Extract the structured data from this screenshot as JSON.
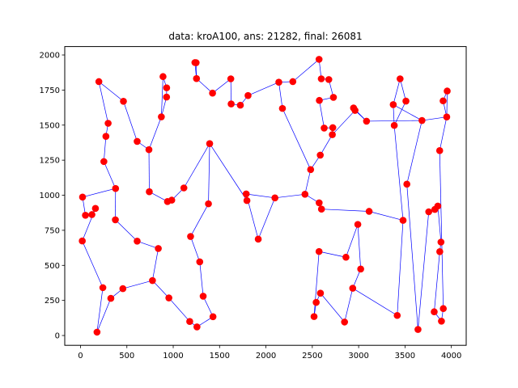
{
  "chart_data": {
    "type": "scatter",
    "title": "data: kroA100, ans: 21282, final: 26081",
    "xlabel": "",
    "ylabel": "",
    "xlim": [
      -170,
      4160
    ],
    "ylim": [
      -70,
      2060
    ],
    "xticks": [
      0,
      500,
      1000,
      1500,
      2000,
      2500,
      3000,
      3500,
      4000
    ],
    "yticks": [
      0,
      250,
      500,
      750,
      1000,
      1250,
      1500,
      1750,
      2000
    ],
    "grid": false,
    "marker_color": "#ff0000",
    "line_color": "#0000ff",
    "points": [
      [
        1380,
        939
      ],
      [
        2848,
        96
      ],
      [
        3510,
        1671
      ],
      [
        457,
        334
      ],
      [
        3888,
        666
      ],
      [
        984,
        965
      ],
      [
        2721,
        1482
      ],
      [
        1286,
        525
      ],
      [
        2716,
        1432
      ],
      [
        738,
        1325
      ],
      [
        1251,
        1832
      ],
      [
        2728,
        1698
      ],
      [
        3815,
        169
      ],
      [
        3683,
        1533
      ],
      [
        1247,
        1945
      ],
      [
        123,
        862
      ],
      [
        1234,
        1946
      ],
      [
        252,
        1240
      ],
      [
        611,
        673
      ],
      [
        2576,
        1676
      ],
      [
        928,
        1700
      ],
      [
        53,
        857
      ],
      [
        1807,
        1711
      ],
      [
        274,
        1420
      ],
      [
        2574,
        946
      ],
      [
        178,
        24
      ],
      [
        2678,
        1825
      ],
      [
        1795,
        962
      ],
      [
        3384,
        1498
      ],
      [
        3520,
        1079
      ],
      [
        1256,
        61
      ],
      [
        1424,
        1728
      ],
      [
        3913,
        192
      ],
      [
        3085,
        1528
      ],
      [
        2573,
        1969
      ],
      [
        463,
        1670
      ],
      [
        3875,
        598
      ],
      [
        298,
        1513
      ],
      [
        3479,
        821
      ],
      [
        2542,
        236
      ],
      [
        3955,
        1743
      ],
      [
        1323,
        280
      ],
      [
        3447,
        1830
      ],
      [
        2936,
        337
      ],
      [
        1621,
        1830
      ],
      [
        3373,
        1646
      ],
      [
        1393,
        1368
      ],
      [
        3874,
        1318
      ],
      [
        938,
        955
      ],
      [
        3022,
        474
      ],
      [
        2482,
        1183
      ],
      [
        3854,
        923
      ],
      [
        376,
        825
      ],
      [
        2519,
        135
      ],
      [
        2945,
        1622
      ],
      [
        953,
        268
      ],
      [
        2628,
        1479
      ],
      [
        2097,
        981
      ],
      [
        890,
        1846
      ],
      [
        2139,
        1806
      ],
      [
        2421,
        1007
      ],
      [
        2290,
        1810
      ],
      [
        1115,
        1052
      ],
      [
        2588,
        302
      ],
      [
        327,
        265
      ],
      [
        241,
        341
      ],
      [
        1917,
        687
      ],
      [
        2991,
        792
      ],
      [
        2573,
        599
      ],
      [
        19,
        674
      ],
      [
        3911,
        1673
      ],
      [
        872,
        1559
      ],
      [
        2863,
        558
      ],
      [
        929,
        1766
      ],
      [
        839,
        620
      ],
      [
        3893,
        102
      ],
      [
        2178,
        1619
      ],
      [
        3822,
        899
      ],
      [
        378,
        1048
      ],
      [
        1178,
        100
      ],
      [
        2599,
        901
      ],
      [
        3416,
        143
      ],
      [
        2961,
        1605
      ],
      [
        611,
        1384
      ],
      [
        3113,
        885
      ],
      [
        2597,
        1830
      ],
      [
        2586,
        1286
      ],
      [
        161,
        906
      ],
      [
        1429,
        134
      ],
      [
        742,
        1025
      ],
      [
        1625,
        1651
      ],
      [
        1187,
        706
      ],
      [
        1787,
        1009
      ],
      [
        22,
        987
      ],
      [
        3640,
        43
      ],
      [
        3756,
        882
      ],
      [
        776,
        392
      ],
      [
        1724,
        1642
      ],
      [
        198,
        1810
      ],
      [
        3950,
        1558
      ]
    ],
    "tour_order": [
      98,
      35,
      83,
      9,
      89,
      48,
      5,
      62,
      46,
      0,
      91,
      7,
      41,
      88,
      30,
      79,
      55,
      96,
      74,
      18,
      52,
      78,
      17,
      23,
      37,
      98
    ],
    "tour_extra_edges": [
      [
        98,
        35
      ],
      [
        35,
        83
      ],
      [
        83,
        9
      ],
      [
        9,
        89
      ],
      [
        89,
        48
      ],
      [
        48,
        5
      ],
      [
        5,
        62
      ],
      [
        62,
        46
      ],
      [
        46,
        0
      ],
      [
        0,
        91
      ],
      [
        91,
        7
      ],
      [
        7,
        41
      ],
      [
        41,
        88
      ],
      [
        88,
        30
      ],
      [
        30,
        79
      ],
      [
        79,
        55
      ],
      [
        55,
        96
      ],
      [
        96,
        74
      ],
      [
        74,
        18
      ],
      [
        18,
        52
      ],
      [
        52,
        78
      ],
      [
        78,
        93
      ],
      [
        93,
        21
      ],
      [
        21,
        15
      ],
      [
        15,
        87
      ],
      [
        87,
        69
      ],
      [
        69,
        65
      ],
      [
        65,
        25
      ],
      [
        25,
        64
      ],
      [
        64,
        3
      ],
      [
        3,
        96
      ],
      [
        37,
        23
      ],
      [
        23,
        17
      ],
      [
        17,
        78
      ],
      [
        98,
        37
      ],
      [
        71,
        20
      ],
      [
        20,
        73
      ],
      [
        73,
        58
      ],
      [
        58,
        71
      ],
      [
        71,
        9
      ],
      [
        10,
        14
      ],
      [
        14,
        16
      ],
      [
        16,
        10
      ],
      [
        10,
        31
      ],
      [
        31,
        44
      ],
      [
        44,
        90
      ],
      [
        90,
        97
      ],
      [
        97,
        22
      ],
      [
        22,
        59
      ],
      [
        59,
        61
      ],
      [
        61,
        34
      ],
      [
        34,
        85
      ],
      [
        85,
        26
      ],
      [
        26,
        11
      ],
      [
        11,
        19
      ],
      [
        19,
        56
      ],
      [
        56,
        6
      ],
      [
        6,
        8
      ],
      [
        8,
        86
      ],
      [
        86,
        50
      ],
      [
        50,
        76
      ],
      [
        76,
        59
      ],
      [
        92,
        27
      ],
      [
        92,
        66
      ],
      [
        66,
        57
      ],
      [
        57,
        60
      ],
      [
        60,
        24
      ],
      [
        24,
        80
      ],
      [
        80,
        84
      ],
      [
        84,
        38
      ],
      [
        38,
        81
      ],
      [
        81,
        43
      ],
      [
        43,
        49
      ],
      [
        49,
        67
      ],
      [
        67,
        72
      ],
      [
        72,
        68
      ],
      [
        68,
        53
      ],
      [
        53,
        39
      ],
      [
        39,
        63
      ],
      [
        63,
        1
      ],
      [
        1,
        43
      ],
      [
        50,
        60
      ],
      [
        6,
        56
      ],
      [
        8,
        6
      ],
      [
        54,
        82
      ],
      [
        82,
        33
      ],
      [
        33,
        54
      ],
      [
        82,
        8
      ],
      [
        33,
        13
      ],
      [
        13,
        45
      ],
      [
        45,
        28
      ],
      [
        28,
        2
      ],
      [
        2,
        42
      ],
      [
        42,
        45
      ],
      [
        13,
        29
      ],
      [
        29,
        94
      ],
      [
        94,
        95
      ],
      [
        95,
        77
      ],
      [
        77,
        51
      ],
      [
        51,
        4
      ],
      [
        4,
        36
      ],
      [
        36,
        12
      ],
      [
        12,
        75
      ],
      [
        75,
        32
      ],
      [
        32,
        47
      ],
      [
        47,
        99
      ],
      [
        99,
        40
      ],
      [
        40,
        70
      ],
      [
        70,
        99
      ],
      [
        99,
        13
      ],
      [
        38,
        28
      ],
      [
        14,
        16
      ],
      [
        10,
        14
      ],
      [
        46,
        27
      ],
      [
        27,
        92
      ],
      [
        92,
        57
      ]
    ]
  }
}
